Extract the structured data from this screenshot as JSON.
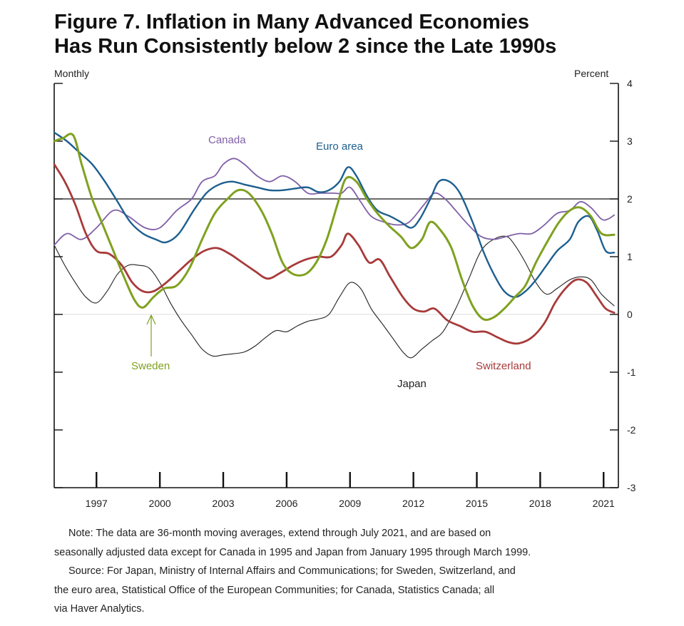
{
  "title_line1": "Figure 7. Inflation in Many Advanced Economies",
  "title_line2": "Has Run Consistently below 2 since the Late 1990s",
  "left_label": "Monthly",
  "right_label": "Percent",
  "note_line1": "Note:  The data are 36-month moving averages, extend through July 2021, and are based on",
  "note_line2": "seasonally adjusted data except for Canada in 1995 and Japan from January 1995 through March 1999.",
  "source_line1": "Source:  For Japan, Ministry of Internal Affairs and Communications; for Sweden, Switzerland, and",
  "source_line2": "the euro area, Statistical Office of the European Communities; for Canada, Statistics Canada; all",
  "source_line3": "via Haver Analytics.",
  "chart_data": {
    "type": "line",
    "ylim": [
      -3,
      4
    ],
    "xlim": [
      1995.0,
      2021.7
    ],
    "y_ticks": [
      -3,
      -2,
      -1,
      0,
      1,
      2,
      3,
      4
    ],
    "y_tick_labels": [
      "-3",
      "-2",
      "-1",
      "0",
      "1",
      "2",
      "3",
      "4"
    ],
    "x_tick_labels": [
      "1997",
      "2000",
      "2003",
      "2006",
      "2009",
      "2012",
      "2015",
      "2018",
      "2021"
    ],
    "x_tick_positions": [
      1997,
      2000,
      2003,
      2006,
      2009,
      2012,
      2015,
      2018,
      2021
    ],
    "reference_line": 2,
    "zero_line": 0,
    "series": [
      {
        "name": "Canada",
        "color": "#8060a8",
        "points": [
          [
            1995.0,
            1.2
          ],
          [
            1995.6,
            1.4
          ],
          [
            1996.3,
            1.3
          ],
          [
            1997.0,
            1.5
          ],
          [
            1997.8,
            1.8
          ],
          [
            1998.5,
            1.7
          ],
          [
            1999.3,
            1.5
          ],
          [
            2000.0,
            1.5
          ],
          [
            2000.8,
            1.8
          ],
          [
            2001.5,
            2.0
          ],
          [
            2002.0,
            2.3
          ],
          [
            2002.6,
            2.4
          ],
          [
            2003.0,
            2.6
          ],
          [
            2003.5,
            2.7
          ],
          [
            2004.0,
            2.6
          ],
          [
            2004.6,
            2.4
          ],
          [
            2005.2,
            2.3
          ],
          [
            2005.8,
            2.4
          ],
          [
            2006.4,
            2.3
          ],
          [
            2007.0,
            2.1
          ],
          [
            2007.6,
            2.1
          ],
          [
            2008.2,
            2.1
          ],
          [
            2008.6,
            2.1
          ],
          [
            2009.0,
            2.2
          ],
          [
            2009.5,
            1.95
          ],
          [
            2010.0,
            1.7
          ],
          [
            2010.6,
            1.6
          ],
          [
            2011.2,
            1.55
          ],
          [
            2011.8,
            1.6
          ],
          [
            2012.5,
            1.9
          ],
          [
            2013.0,
            2.1
          ],
          [
            2013.5,
            2.0
          ],
          [
            2014.0,
            1.8
          ],
          [
            2014.6,
            1.55
          ],
          [
            2015.2,
            1.35
          ],
          [
            2015.8,
            1.3
          ],
          [
            2016.4,
            1.35
          ],
          [
            2017.0,
            1.4
          ],
          [
            2017.6,
            1.4
          ],
          [
            2018.2,
            1.55
          ],
          [
            2018.8,
            1.75
          ],
          [
            2019.4,
            1.8
          ],
          [
            2019.9,
            1.95
          ],
          [
            2020.4,
            1.85
          ],
          [
            2020.9,
            1.65
          ],
          [
            2021.2,
            1.65
          ],
          [
            2021.5,
            1.72
          ]
        ]
      },
      {
        "name": "Euro area",
        "color": "#1d5f8f",
        "points": [
          [
            1995.0,
            3.15
          ],
          [
            1995.6,
            3.0
          ],
          [
            1996.2,
            2.8
          ],
          [
            1996.8,
            2.6
          ],
          [
            1997.4,
            2.3
          ],
          [
            1998.0,
            1.95
          ],
          [
            1998.6,
            1.6
          ],
          [
            1999.2,
            1.4
          ],
          [
            1999.8,
            1.3
          ],
          [
            2000.3,
            1.25
          ],
          [
            2000.9,
            1.4
          ],
          [
            2001.6,
            1.8
          ],
          [
            2002.2,
            2.1
          ],
          [
            2002.8,
            2.25
          ],
          [
            2003.4,
            2.3
          ],
          [
            2004.0,
            2.25
          ],
          [
            2004.6,
            2.2
          ],
          [
            2005.2,
            2.15
          ],
          [
            2005.8,
            2.15
          ],
          [
            2006.4,
            2.18
          ],
          [
            2007.0,
            2.2
          ],
          [
            2007.5,
            2.12
          ],
          [
            2008.0,
            2.15
          ],
          [
            2008.5,
            2.3
          ],
          [
            2008.9,
            2.55
          ],
          [
            2009.3,
            2.4
          ],
          [
            2009.8,
            2.05
          ],
          [
            2010.3,
            1.8
          ],
          [
            2010.9,
            1.7
          ],
          [
            2011.4,
            1.6
          ],
          [
            2011.9,
            1.5
          ],
          [
            2012.3,
            1.65
          ],
          [
            2012.8,
            2.0
          ],
          [
            2013.2,
            2.3
          ],
          [
            2013.7,
            2.3
          ],
          [
            2014.2,
            2.1
          ],
          [
            2014.8,
            1.6
          ],
          [
            2015.3,
            1.1
          ],
          [
            2015.8,
            0.7
          ],
          [
            2016.3,
            0.4
          ],
          [
            2016.8,
            0.3
          ],
          [
            2017.3,
            0.4
          ],
          [
            2017.8,
            0.6
          ],
          [
            2018.3,
            0.85
          ],
          [
            2018.8,
            1.1
          ],
          [
            2019.4,
            1.3
          ],
          [
            2019.8,
            1.6
          ],
          [
            2020.3,
            1.7
          ],
          [
            2020.7,
            1.45
          ],
          [
            2021.1,
            1.1
          ],
          [
            2021.5,
            1.07
          ]
        ]
      },
      {
        "name": "Sweden",
        "color": "#7fa11f",
        "points": [
          [
            1995.0,
            3.0
          ],
          [
            1995.4,
            3.05
          ],
          [
            1995.9,
            3.1
          ],
          [
            1996.3,
            2.6
          ],
          [
            1996.8,
            2.0
          ],
          [
            1997.3,
            1.55
          ],
          [
            1997.8,
            1.1
          ],
          [
            1998.3,
            0.65
          ],
          [
            1998.8,
            0.25
          ],
          [
            1999.2,
            0.12
          ],
          [
            1999.7,
            0.3
          ],
          [
            2000.2,
            0.45
          ],
          [
            2000.8,
            0.5
          ],
          [
            2001.4,
            0.8
          ],
          [
            2002.0,
            1.3
          ],
          [
            2002.6,
            1.75
          ],
          [
            2003.2,
            2.0
          ],
          [
            2003.7,
            2.15
          ],
          [
            2004.2,
            2.1
          ],
          [
            2004.8,
            1.8
          ],
          [
            2005.3,
            1.4
          ],
          [
            2005.8,
            0.9
          ],
          [
            2006.3,
            0.7
          ],
          [
            2006.9,
            0.7
          ],
          [
            2007.4,
            0.9
          ],
          [
            2007.9,
            1.3
          ],
          [
            2008.4,
            1.9
          ],
          [
            2008.8,
            2.35
          ],
          [
            2009.3,
            2.3
          ],
          [
            2009.8,
            2.0
          ],
          [
            2010.3,
            1.75
          ],
          [
            2010.8,
            1.55
          ],
          [
            2011.4,
            1.35
          ],
          [
            2011.9,
            1.15
          ],
          [
            2012.4,
            1.3
          ],
          [
            2012.8,
            1.6
          ],
          [
            2013.3,
            1.45
          ],
          [
            2013.8,
            1.15
          ],
          [
            2014.3,
            0.6
          ],
          [
            2014.8,
            0.15
          ],
          [
            2015.3,
            -0.08
          ],
          [
            2015.8,
            -0.05
          ],
          [
            2016.3,
            0.1
          ],
          [
            2016.8,
            0.3
          ],
          [
            2017.3,
            0.5
          ],
          [
            2017.8,
            0.9
          ],
          [
            2018.4,
            1.3
          ],
          [
            2018.9,
            1.6
          ],
          [
            2019.4,
            1.8
          ],
          [
            2019.9,
            1.85
          ],
          [
            2020.4,
            1.7
          ],
          [
            2020.9,
            1.4
          ],
          [
            2021.5,
            1.38
          ]
        ]
      },
      {
        "name": "Switzerland",
        "color": "#a83a3a",
        "points": [
          [
            1995.0,
            2.6
          ],
          [
            1995.5,
            2.3
          ],
          [
            1996.0,
            1.9
          ],
          [
            1996.5,
            1.4
          ],
          [
            1997.0,
            1.1
          ],
          [
            1997.6,
            1.05
          ],
          [
            1998.2,
            0.85
          ],
          [
            1998.7,
            0.55
          ],
          [
            1999.2,
            0.4
          ],
          [
            1999.7,
            0.4
          ],
          [
            2000.3,
            0.55
          ],
          [
            2000.9,
            0.75
          ],
          [
            2001.5,
            0.95
          ],
          [
            2002.1,
            1.1
          ],
          [
            2002.7,
            1.15
          ],
          [
            2003.3,
            1.05
          ],
          [
            2003.9,
            0.9
          ],
          [
            2004.5,
            0.75
          ],
          [
            2005.1,
            0.62
          ],
          [
            2005.7,
            0.72
          ],
          [
            2006.3,
            0.85
          ],
          [
            2006.9,
            0.95
          ],
          [
            2007.5,
            1.0
          ],
          [
            2008.1,
            1.0
          ],
          [
            2008.6,
            1.2
          ],
          [
            2008.9,
            1.4
          ],
          [
            2009.4,
            1.2
          ],
          [
            2009.9,
            0.9
          ],
          [
            2010.4,
            0.95
          ],
          [
            2010.9,
            0.65
          ],
          [
            2011.5,
            0.3
          ],
          [
            2012.0,
            0.1
          ],
          [
            2012.5,
            0.05
          ],
          [
            2013.0,
            0.1
          ],
          [
            2013.6,
            -0.1
          ],
          [
            2014.2,
            -0.2
          ],
          [
            2014.8,
            -0.3
          ],
          [
            2015.4,
            -0.3
          ],
          [
            2016.0,
            -0.4
          ],
          [
            2016.5,
            -0.48
          ],
          [
            2017.0,
            -0.5
          ],
          [
            2017.6,
            -0.4
          ],
          [
            2018.2,
            -0.15
          ],
          [
            2018.7,
            0.2
          ],
          [
            2019.2,
            0.45
          ],
          [
            2019.7,
            0.6
          ],
          [
            2020.2,
            0.55
          ],
          [
            2020.7,
            0.3
          ],
          [
            2021.1,
            0.1
          ],
          [
            2021.5,
            0.03
          ]
        ]
      },
      {
        "name": "Japan",
        "color": "#222222",
        "points": [
          [
            1995.0,
            1.2
          ],
          [
            1995.5,
            0.85
          ],
          [
            1996.0,
            0.55
          ],
          [
            1996.5,
            0.3
          ],
          [
            1997.0,
            0.2
          ],
          [
            1997.5,
            0.4
          ],
          [
            1998.0,
            0.7
          ],
          [
            1998.5,
            0.85
          ],
          [
            1999.0,
            0.85
          ],
          [
            1999.5,
            0.8
          ],
          [
            2000.0,
            0.55
          ],
          [
            2000.5,
            0.2
          ],
          [
            2001.0,
            -0.1
          ],
          [
            2001.5,
            -0.35
          ],
          [
            2002.0,
            -0.6
          ],
          [
            2002.5,
            -0.72
          ],
          [
            2003.0,
            -0.7
          ],
          [
            2003.5,
            -0.68
          ],
          [
            2004.0,
            -0.65
          ],
          [
            2004.5,
            -0.55
          ],
          [
            2005.0,
            -0.4
          ],
          [
            2005.5,
            -0.28
          ],
          [
            2006.0,
            -0.3
          ],
          [
            2006.5,
            -0.2
          ],
          [
            2007.0,
            -0.12
          ],
          [
            2007.5,
            -0.08
          ],
          [
            2008.0,
            0.0
          ],
          [
            2008.5,
            0.3
          ],
          [
            2009.0,
            0.55
          ],
          [
            2009.5,
            0.45
          ],
          [
            2010.0,
            0.1
          ],
          [
            2010.5,
            -0.15
          ],
          [
            2011.0,
            -0.4
          ],
          [
            2011.5,
            -0.65
          ],
          [
            2011.9,
            -0.75
          ],
          [
            2012.4,
            -0.6
          ],
          [
            2012.9,
            -0.45
          ],
          [
            2013.4,
            -0.3
          ],
          [
            2014.0,
            0.1
          ],
          [
            2014.6,
            0.6
          ],
          [
            2015.2,
            1.1
          ],
          [
            2015.8,
            1.3
          ],
          [
            2016.4,
            1.35
          ],
          [
            2016.8,
            1.2
          ],
          [
            2017.3,
            0.9
          ],
          [
            2017.8,
            0.55
          ],
          [
            2018.3,
            0.35
          ],
          [
            2018.8,
            0.45
          ],
          [
            2019.4,
            0.6
          ],
          [
            2019.9,
            0.65
          ],
          [
            2020.4,
            0.6
          ],
          [
            2020.9,
            0.35
          ],
          [
            2021.5,
            0.15
          ]
        ]
      }
    ],
    "labels": {
      "canada": "Canada",
      "euro_area": "Euro area",
      "sweden": "Sweden",
      "switzerland": "Switzerland",
      "japan": "Japan"
    }
  }
}
